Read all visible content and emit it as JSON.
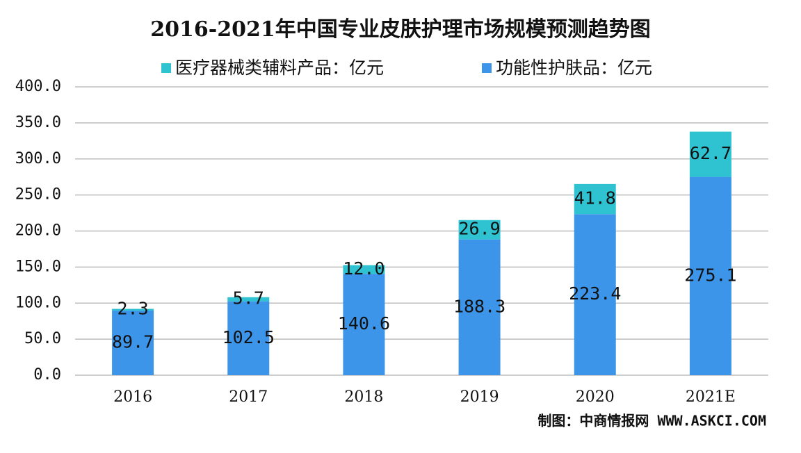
{
  "chart_data": {
    "type": "stacked_bar",
    "title": "2016-2021年中国专业皮肤护理市场规模预测趋势图",
    "categories": [
      "2016",
      "2017",
      "2018",
      "2019",
      "2020",
      "2021E"
    ],
    "series": [
      {
        "name": "功能性护肤品：亿元",
        "color": "#3d95ea",
        "values": [
          89.7,
          102.5,
          140.6,
          188.3,
          223.4,
          275.1
        ]
      },
      {
        "name": "医疗器械类辅料产品：亿元",
        "color": "#2fc3d2",
        "values": [
          2.3,
          5.7,
          12.0,
          26.9,
          41.8,
          62.7
        ],
        "value_labels": [
          "2.3",
          "5.7",
          "12.0",
          "26.9",
          "41.8",
          "62.7"
        ]
      }
    ],
    "ylim": [
      0,
      400
    ],
    "yticks": [
      {
        "value": 0,
        "label": "0.0"
      },
      {
        "value": 50,
        "label": "50.0"
      },
      {
        "value": 100,
        "label": "100.0"
      },
      {
        "value": 150,
        "label": "150.0"
      },
      {
        "value": 200,
        "label": "200.0"
      },
      {
        "value": 250,
        "label": "250.0"
      },
      {
        "value": 300,
        "label": "300.0"
      },
      {
        "value": 350,
        "label": "350.0"
      },
      {
        "value": 400,
        "label": "400.0"
      }
    ],
    "grid": true,
    "source": "制图：中商情报网 WWW.ASKCI.COM"
  }
}
